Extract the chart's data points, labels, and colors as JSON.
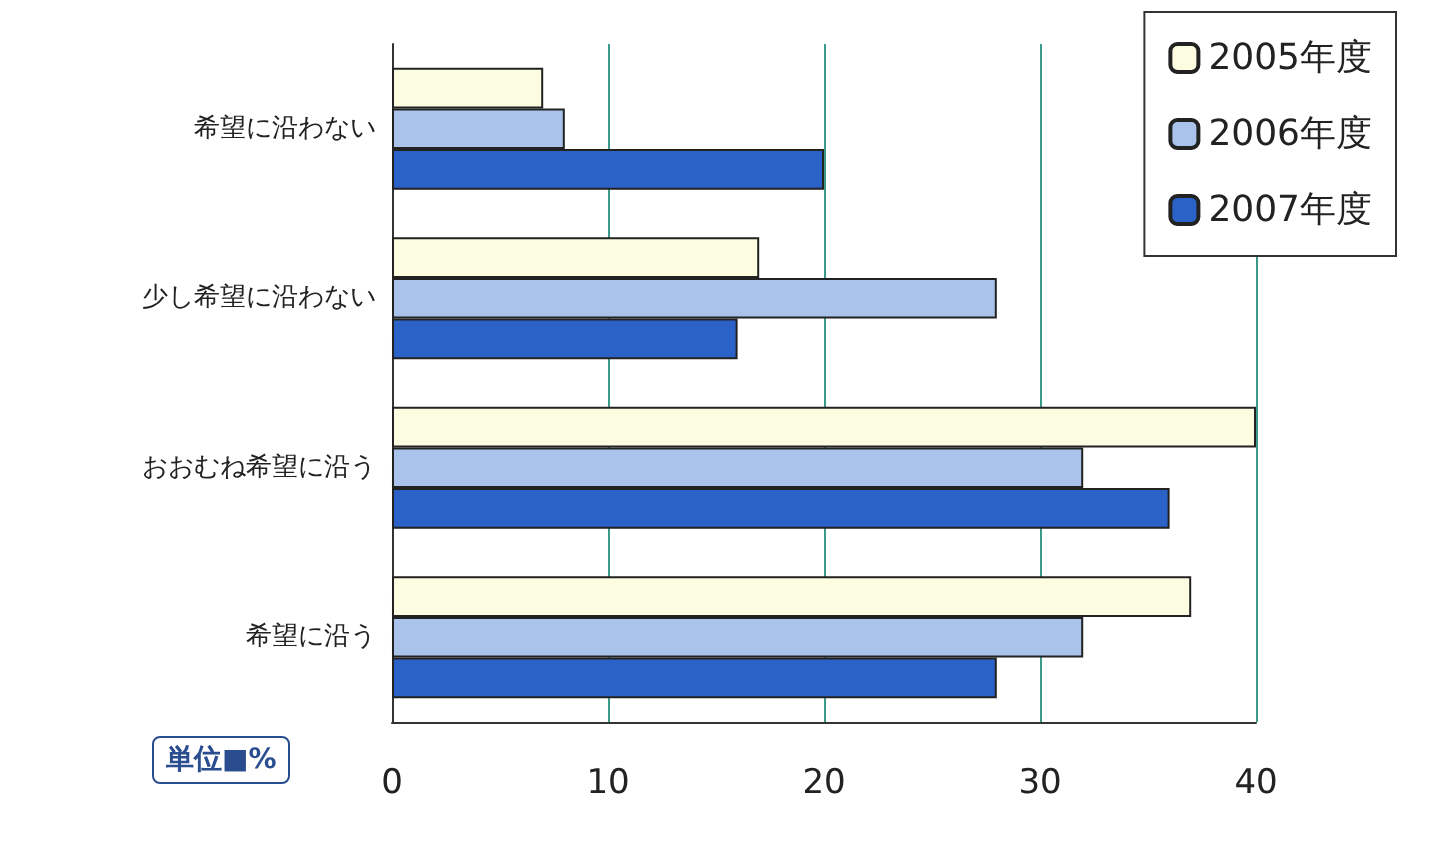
{
  "chart_data": {
    "type": "bar",
    "orientation": "horizontal",
    "categories": [
      "希望に沿わない",
      "少し希望に沿わない",
      "おおむね希望に沿う",
      "希望に沿う"
    ],
    "series": [
      {
        "name": "2005年度",
        "color": "#fcfce0",
        "values": [
          7,
          17,
          40,
          37
        ]
      },
      {
        "name": "2006年度",
        "color": "#a9c3ea",
        "values": [
          8,
          28,
          32,
          32
        ]
      },
      {
        "name": "2007年度",
        "color": "#2a62c8",
        "values": [
          20,
          16,
          36,
          28
        ]
      }
    ],
    "xlim": [
      0,
      40
    ],
    "xticks": [
      0,
      10,
      20,
      30,
      40
    ],
    "grid": "x",
    "legend": "top right",
    "annotations": [
      "単位■%"
    ]
  }
}
